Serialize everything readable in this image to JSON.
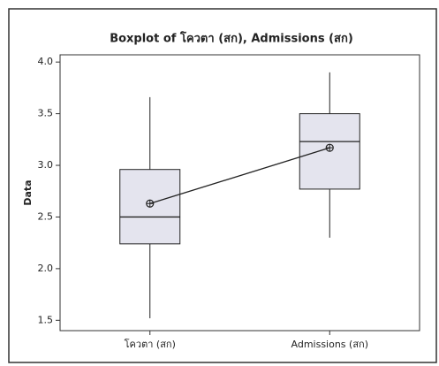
{
  "chart_data": {
    "type": "box",
    "title": "Boxplot of โควตา (สก), Admissions (สก)",
    "y_label": "Data",
    "categories": [
      "โควตา (สก)",
      "Admissions (สก)"
    ],
    "boxes": [
      {
        "whisker_low": 1.52,
        "q1": 2.24,
        "median": 2.5,
        "q3": 2.96,
        "whisker_high": 3.66,
        "mean": 2.63
      },
      {
        "whisker_low": 2.3,
        "q1": 2.77,
        "median": 3.23,
        "q3": 3.5,
        "whisker_high": 3.9,
        "mean": 3.17
      }
    ],
    "box_color": "#e4e4ee",
    "line_color": "#222222",
    "ylim": [
      1.4,
      4.07
    ],
    "yticks": [
      1.5,
      {
        "value": 2,
        "label": "2.0"
      },
      2.5,
      {
        "value": 3,
        "label": "3.0"
      },
      3.5,
      {
        "value": 4,
        "label": "4.0"
      }
    ]
  }
}
